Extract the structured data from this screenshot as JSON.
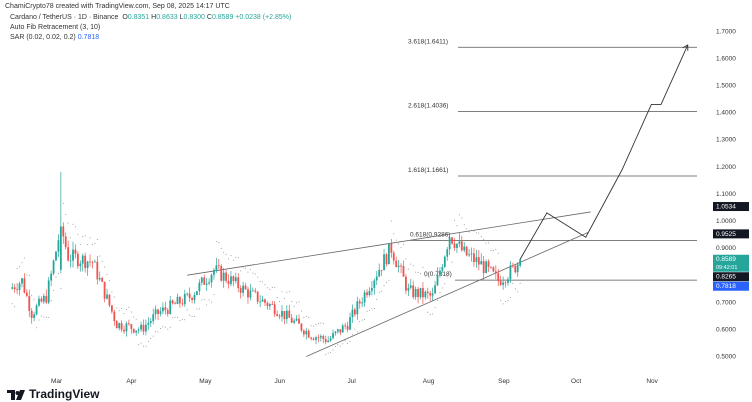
{
  "header": {
    "credit": "ChamiCrypto78 created with TradingView.com, Sep 08, 2025 14:17 UTC"
  },
  "legend": {
    "symbol": "Cardano / TetherUS · 1D · Binance",
    "o_label": "O",
    "o": "0.8351",
    "h_label": "H",
    "h": "0.8633",
    "l_label": "L",
    "l": "0.8300",
    "c_label": "C",
    "c": "0.8589",
    "change": "+0.0238 (+2.85%)",
    "fib": "Auto Fib Retracement (3, 10)",
    "sar_label": "SAR (0.02, 0.02, 0.2)",
    "sar": "0.7818"
  },
  "brand": {
    "name": "TradingView"
  },
  "colors": {
    "up": "#26a69a",
    "down": "#ef5350",
    "sar": "#2962ff"
  },
  "chart_data": {
    "type": "candlestick",
    "ylim": [
      0.45,
      1.72
    ],
    "yticks": [
      "1.7000",
      "1.6000",
      "1.5000",
      "1.4000",
      "1.3000",
      "1.2000",
      "1.1000",
      "1.0000",
      "0.9000",
      "0.7000",
      "0.6000",
      "0.5000"
    ],
    "ytick_values": [
      1.7,
      1.6,
      1.5,
      1.4,
      1.3,
      1.2,
      1.1,
      1.0,
      0.9,
      0.7,
      0.6,
      0.5
    ],
    "xticks": [
      "Mar",
      "Apr",
      "May",
      "Jun",
      "Jul",
      "Aug",
      "Sep",
      "Oct",
      "Nov"
    ],
    "xtick_days": [
      0,
      31,
      61,
      92,
      122,
      153,
      184,
      214,
      245
    ],
    "price_path_days": [
      -19,
      -14,
      -10,
      -4,
      -2,
      2,
      5,
      15,
      25,
      35,
      42,
      55,
      65,
      72,
      80,
      90,
      105,
      112,
      120,
      130,
      138,
      145,
      155,
      162,
      168,
      175,
      182,
      188,
      191
    ],
    "price_path": [
      0.75,
      0.78,
      0.66,
      0.72,
      0.8,
      0.98,
      0.87,
      0.85,
      0.62,
      0.6,
      0.66,
      0.72,
      0.82,
      0.78,
      0.73,
      0.68,
      0.58,
      0.56,
      0.62,
      0.78,
      0.9,
      0.74,
      0.72,
      0.95,
      0.88,
      0.84,
      0.78,
      0.82,
      0.8589
    ],
    "fib_levels": [
      {
        "label": "3.618(1.6411)",
        "value": 1.6411
      },
      {
        "label": "2.618(1.4036)",
        "value": 1.4036
      },
      {
        "label": "1.618(1.1661)",
        "value": 1.1661
      },
      {
        "label": "0.618(0.9286)",
        "value": 0.9286
      },
      {
        "label": "0(0.7818)",
        "value": 0.7818
      }
    ],
    "price_labels": [
      {
        "text": "1.0534",
        "value": 1.0534,
        "color": "#131722"
      },
      {
        "text": "0.9525",
        "value": 0.9525,
        "color": "#131722"
      },
      {
        "text": "0.8589",
        "sub": "09:42:01",
        "value": 0.8589,
        "color": "#26a69a"
      },
      {
        "text": "0.8265",
        "value": 0.8265,
        "color": "#131722"
      },
      {
        "text": "0.7818",
        "value": 0.7818,
        "color": "#2962ff"
      }
    ],
    "wedge_upper": [
      [
        54,
        0.8
      ],
      [
        220,
        1.0334
      ]
    ],
    "wedge_lower": [
      [
        103,
        0.5
      ],
      [
        219,
        0.958
      ]
    ],
    "projection_days": [
      191,
      202,
      218,
      233,
      245,
      249,
      260
    ],
    "projection": [
      0.8589,
      1.03,
      0.94,
      1.19,
      1.43,
      1.43,
      1.65
    ]
  }
}
